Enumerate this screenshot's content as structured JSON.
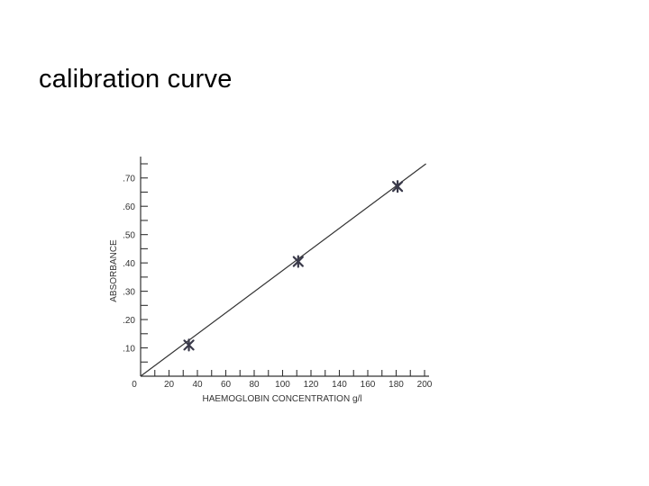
{
  "slide": {
    "title": "calibration curve"
  },
  "chart_data": {
    "type": "scatter",
    "title": "",
    "xlabel": "HAEMOGLOBIN CONCENTRATION g/l",
    "ylabel": "ABSORBANCE",
    "xlim": [
      0,
      200
    ],
    "ylim": [
      0,
      0.75
    ],
    "x_ticks": [
      0,
      20,
      40,
      60,
      80,
      100,
      120,
      140,
      160,
      180,
      200
    ],
    "x_tick_labels": [
      "0",
      "20",
      "40",
      "60",
      "80",
      "100",
      "120",
      "140",
      "160",
      "180",
      "200"
    ],
    "y_ticks": [
      0.1,
      0.2,
      0.3,
      0.4,
      0.5,
      0.6,
      0.7
    ],
    "y_tick_labels": [
      ".10",
      ".20",
      ".30",
      ".40",
      ".50",
      ".60",
      ".70"
    ],
    "grid": false,
    "points": [
      {
        "x": 34,
        "y": 0.11
      },
      {
        "x": 111,
        "y": 0.405
      },
      {
        "x": 181,
        "y": 0.67
      }
    ],
    "fit_line": {
      "x": [
        0,
        201
      ],
      "y": [
        0,
        0.75
      ]
    },
    "colors": {
      "line": "#333333",
      "markers": "#3a3a4a",
      "axes": "#333333"
    }
  }
}
